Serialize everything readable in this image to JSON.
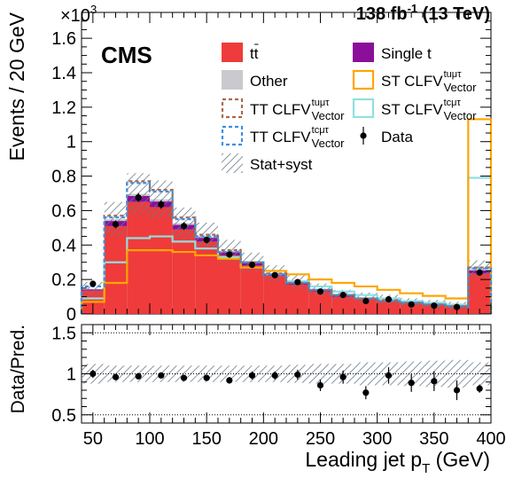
{
  "chart_data": [
    {
      "type": "bar",
      "header": {
        "exponent_base": "×10",
        "exponent_power": "3",
        "lumi_prefix": "138 fb",
        "lumi_power": "-1",
        "lumi_suffix": " (13 TeV)",
        "experiment": "CMS"
      },
      "ylabel": "Events / 20 GeV",
      "ylim": [
        0,
        1.75
      ],
      "y_ticks": [
        "0",
        "0.2",
        "0.4",
        "0.6",
        "0.8",
        "1",
        "1.2",
        "1.4",
        "1.6"
      ],
      "y_tick_values": [
        0,
        0.2,
        0.4,
        0.6,
        0.8,
        1.0,
        1.2,
        1.4,
        1.6
      ],
      "legend_placement": "top-right",
      "legend": [
        {
          "key": "ttbar",
          "label": "tt",
          "style": "fill",
          "color": "#ef3b3b",
          "bar": true
        },
        {
          "key": "single_t",
          "label": "Single t",
          "style": "fill",
          "color": "#8b0f9a"
        },
        {
          "key": "other",
          "label": "Other",
          "style": "fill",
          "color": "#c9c9cf"
        },
        {
          "key": "st_tu",
          "label": "ST CLFV",
          "sup": "tuμτ",
          "sub": "Vector",
          "style": "line",
          "color": "#ffa500"
        },
        {
          "key": "tt_tu",
          "label": "TT CLFV",
          "sup": "tuμτ",
          "sub": "Vector",
          "style": "dash",
          "color": "#a86a4e"
        },
        {
          "key": "st_tc",
          "label": "ST CLFV",
          "sup": "tcμτ",
          "sub": "Vector",
          "style": "line",
          "color": "#8fe0e0"
        },
        {
          "key": "tt_tc",
          "label": "TT CLFV",
          "sup": "tcμτ",
          "sub": "Vector",
          "style": "dash",
          "color": "#3d8fe0"
        },
        {
          "key": "data",
          "label": "Data",
          "style": "point",
          "color": "#000000"
        },
        {
          "key": "unc",
          "label": "Stat+syst",
          "style": "hatch",
          "color": "#6a7a8a"
        }
      ],
      "bin_edges": [
        40,
        60,
        80,
        100,
        120,
        140,
        160,
        180,
        200,
        220,
        240,
        260,
        280,
        300,
        320,
        340,
        360,
        380,
        400
      ],
      "series": [
        {
          "name": "tt",
          "values": [
            0.135,
            0.51,
            0.65,
            0.62,
            0.49,
            0.42,
            0.34,
            0.28,
            0.22,
            0.17,
            0.13,
            0.1,
            0.085,
            0.075,
            0.06,
            0.05,
            0.04,
            0.235
          ]
        },
        {
          "name": "Single t",
          "values": [
            0.008,
            0.03,
            0.035,
            0.033,
            0.027,
            0.022,
            0.018,
            0.015,
            0.012,
            0.01,
            0.008,
            0.007,
            0.006,
            0.005,
            0.004,
            0.004,
            0.003,
            0.018
          ]
        },
        {
          "name": "Other",
          "values": [
            0.003,
            0.01,
            0.012,
            0.012,
            0.01,
            0.008,
            0.007,
            0.006,
            0.005,
            0.004,
            0.004,
            0.003,
            0.003,
            0.003,
            0.002,
            0.002,
            0.002,
            0.008
          ]
        },
        {
          "name": "ST CLFV tuμτ",
          "values": [
            0.07,
            0.18,
            0.37,
            0.37,
            0.36,
            0.34,
            0.32,
            0.27,
            0.25,
            0.23,
            0.2,
            0.18,
            0.16,
            0.14,
            0.12,
            0.105,
            0.09,
            1.13
          ]
        },
        {
          "name": "ST CLFV tcμτ",
          "values": [
            0.09,
            0.3,
            0.44,
            0.45,
            0.42,
            0.38,
            0.33,
            0.27,
            0.23,
            0.19,
            0.16,
            0.13,
            0.11,
            0.09,
            0.075,
            0.065,
            0.055,
            0.79
          ]
        },
        {
          "name": "TT CLFV tuμτ",
          "values": [
            0.16,
            0.57,
            0.77,
            0.72,
            0.56,
            0.46,
            0.37,
            0.3,
            0.235,
            0.18,
            0.14,
            0.11,
            0.09,
            0.08,
            0.065,
            0.055,
            0.045,
            0.27
          ]
        },
        {
          "name": "TT CLFV tcμτ",
          "values": [
            0.16,
            0.56,
            0.76,
            0.71,
            0.55,
            0.45,
            0.36,
            0.3,
            0.23,
            0.18,
            0.14,
            0.11,
            0.09,
            0.075,
            0.065,
            0.055,
            0.045,
            0.265
          ]
        },
        {
          "name": "Data",
          "values": [
            0.175,
            0.52,
            0.675,
            0.635,
            0.51,
            0.43,
            0.345,
            0.285,
            0.225,
            0.185,
            0.13,
            0.11,
            0.075,
            0.085,
            0.055,
            0.048,
            0.04,
            0.24
          ]
        },
        {
          "name": "Stat+syst",
          "values": [
            0.04,
            0.1,
            0.12,
            0.11,
            0.09,
            0.08,
            0.065,
            0.055,
            0.045,
            0.04,
            0.035,
            0.03,
            0.03,
            0.028,
            0.025,
            0.025,
            0.025,
            0.05
          ]
        }
      ]
    },
    {
      "type": "scatter",
      "ylabel": "Data/Pred.",
      "xlabel": "Leading jet p",
      "xlabel_sub": "T",
      "xlabel_suffix": " (GeV)",
      "xlim": [
        40,
        400
      ],
      "ylim": [
        0.4,
        1.6
      ],
      "x_ticks": [
        "50",
        "100",
        "150",
        "200",
        "250",
        "300",
        "350",
        "400"
      ],
      "x_tick_values": [
        50,
        100,
        150,
        200,
        250,
        300,
        350,
        400
      ],
      "y_ticks": [
        "0.5",
        "1",
        "1.5"
      ],
      "y_tick_values": [
        0.5,
        1.0,
        1.5
      ],
      "ref_lines": [
        0.5,
        1.0,
        1.5
      ],
      "x": [
        50,
        70,
        90,
        110,
        130,
        150,
        170,
        190,
        210,
        230,
        250,
        270,
        290,
        310,
        330,
        350,
        370,
        390
      ],
      "ratio": [
        1.0,
        0.96,
        0.97,
        0.98,
        0.95,
        0.95,
        0.92,
        0.98,
        0.98,
        0.99,
        0.86,
        0.96,
        0.77,
        0.98,
        0.89,
        0.91,
        0.8,
        0.82
      ],
      "ratio_err": [
        0.05,
        0.03,
        0.03,
        0.03,
        0.03,
        0.03,
        0.04,
        0.05,
        0.05,
        0.06,
        0.07,
        0.08,
        0.08,
        0.1,
        0.11,
        0.12,
        0.12,
        0.05
      ],
      "band_halfwidth": [
        0.12,
        0.1,
        0.1,
        0.1,
        0.1,
        0.1,
        0.1,
        0.1,
        0.1,
        0.11,
        0.12,
        0.12,
        0.14,
        0.14,
        0.15,
        0.16,
        0.17,
        0.14
      ]
    }
  ]
}
